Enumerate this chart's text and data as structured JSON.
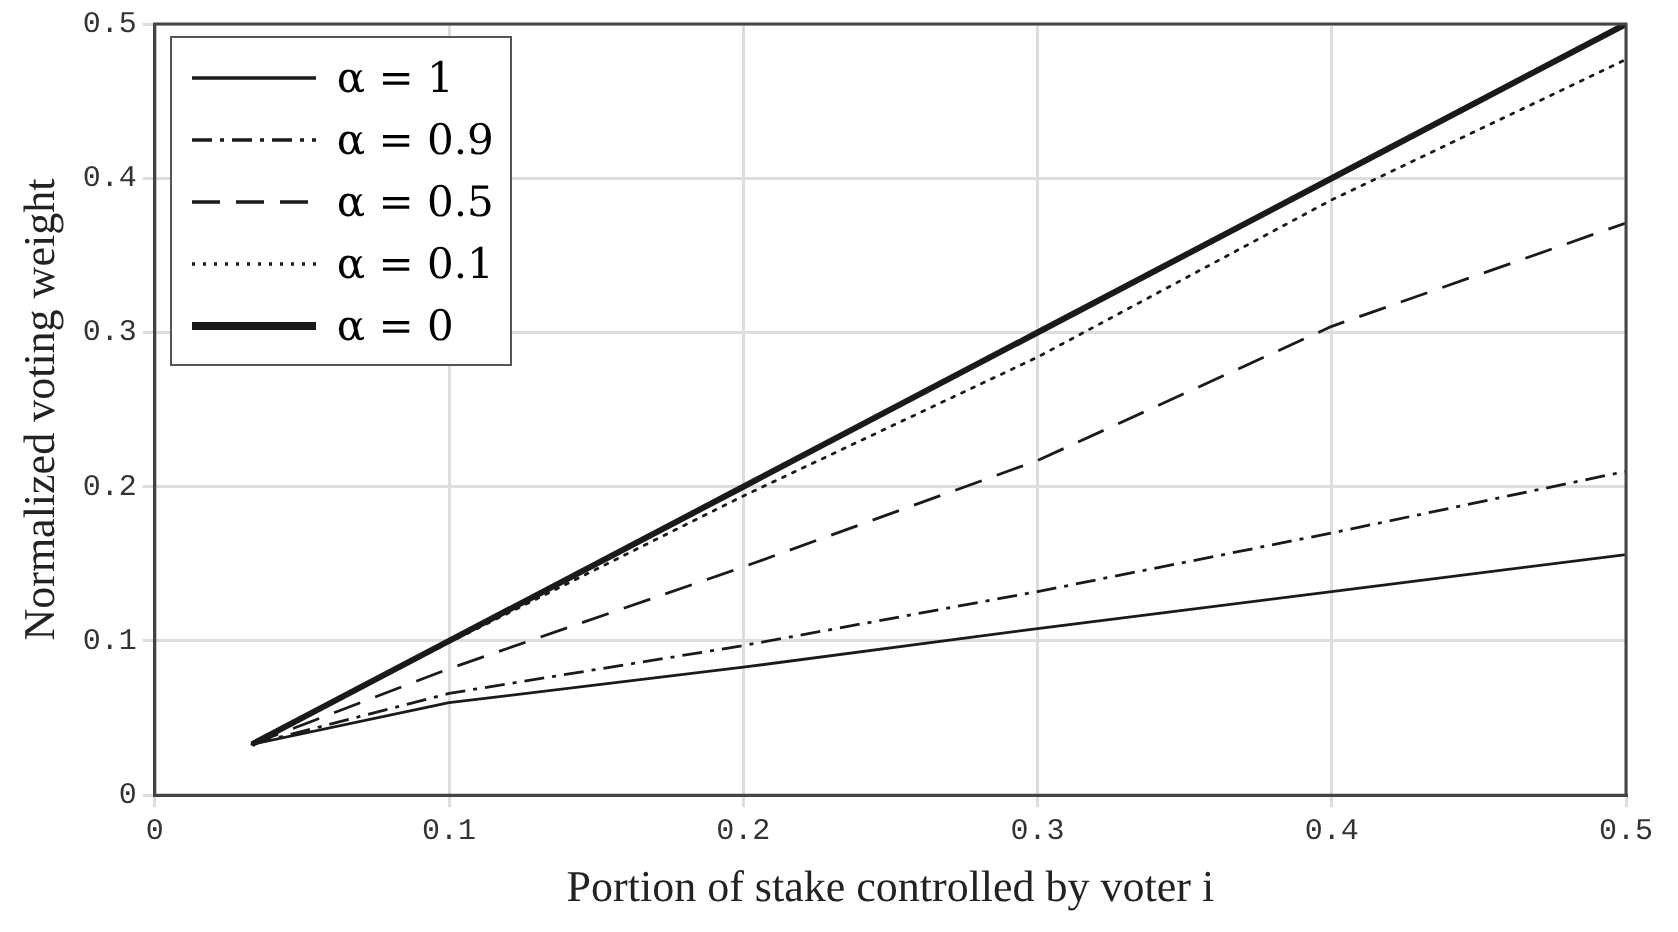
{
  "chart_data": {
    "type": "line",
    "xlabel": "Portion of stake controlled by voter i",
    "ylabel": "Normalized voting weight",
    "x": [
      0.033,
      0.1,
      0.2,
      0.3,
      0.4,
      0.5
    ],
    "series": [
      {
        "name": "α = 1",
        "color": "#1a1a1a",
        "line_style": "solid",
        "values": [
          0.033,
          0.06,
          0.083,
          0.108,
          0.132,
          0.156
        ]
      },
      {
        "name": "α = 0.9",
        "color": "#1a1a1a",
        "line_style": "dashdot",
        "values": [
          0.033,
          0.066,
          0.097,
          0.132,
          0.17,
          0.21
        ]
      },
      {
        "name": "α = 0.5",
        "color": "#1a1a1a",
        "line_style": "dashed",
        "values": [
          0.033,
          0.082,
          0.148,
          0.217,
          0.304,
          0.371
        ]
      },
      {
        "name": "α = 0.1",
        "color": "#1a1a1a",
        "line_style": "dotted",
        "values": [
          0.033,
          0.099,
          0.194,
          0.284,
          0.386,
          0.477
        ]
      },
      {
        "name": "α = 0",
        "color": "#1a1a1a",
        "line_style": "solid",
        "values": [
          0.033,
          0.1,
          0.2,
          0.3,
          0.4,
          0.5
        ]
      }
    ],
    "xlim": [
      0,
      0.5
    ],
    "xticks": [
      0,
      0.1,
      0.2,
      0.3,
      0.4,
      0.5
    ],
    "ylim": [
      0,
      0.5
    ],
    "yticks": [
      0,
      0.1,
      0.2,
      0.3,
      0.4,
      0.5
    ],
    "grid": true,
    "legend": "top left",
    "marker": "none"
  }
}
